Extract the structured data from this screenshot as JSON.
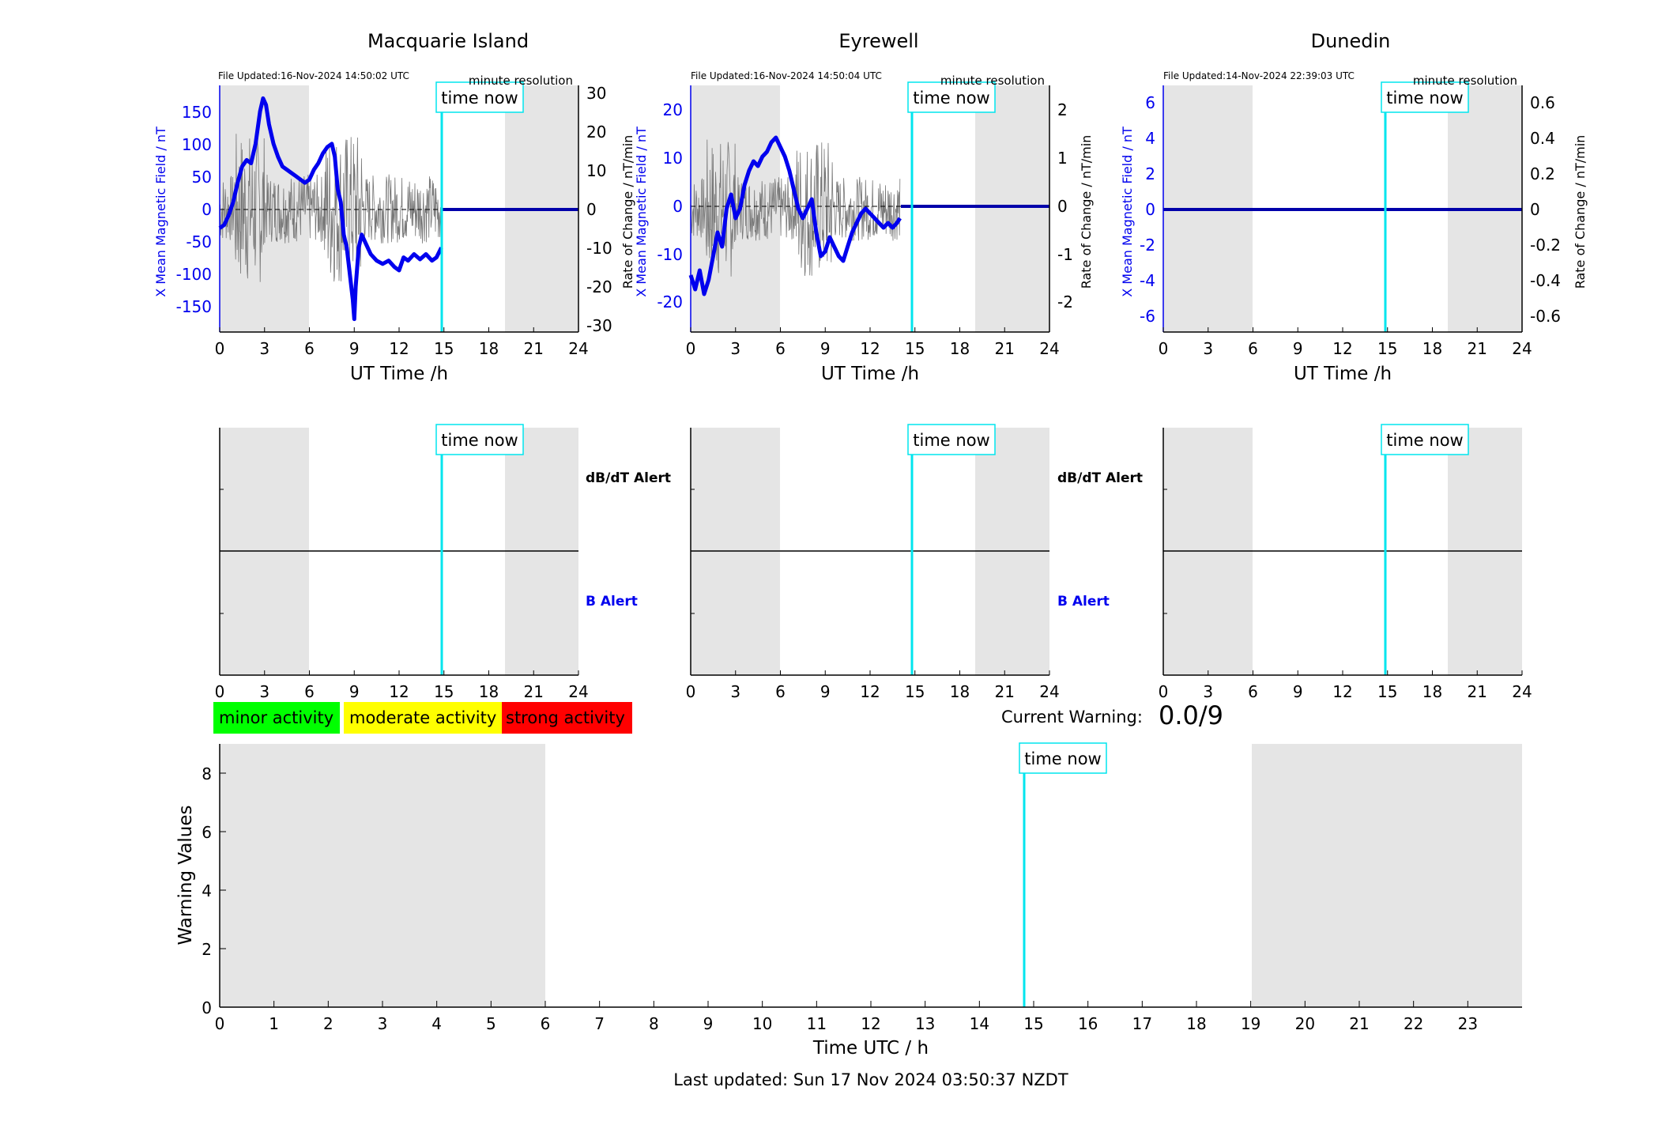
{
  "stations": [
    {
      "title": "Macquarie Island",
      "file_updated": "File Updated:16-Nov-2024 14:50:02 UTC",
      "resolution": "minute resolution",
      "ylabel_left": "X Mean Magnetic Field / nT",
      "ylabel_right": "Rate of Change / nT/min",
      "left_ticks": [
        "-150",
        "-100",
        "-50",
        "0",
        "50",
        "100",
        "150"
      ],
      "right_ticks": [
        "-30",
        "-20",
        "-10",
        "0",
        "10",
        "20",
        "30"
      ]
    },
    {
      "title": "Eyrewell",
      "file_updated": "File Updated:16-Nov-2024 14:50:04 UTC",
      "resolution": "minute resolution",
      "ylabel_left": "X Mean Magnetic Field / nT",
      "ylabel_right": "Rate of Change / nT/min",
      "left_ticks": [
        "-20",
        "-10",
        "0",
        "10",
        "20"
      ],
      "right_ticks": [
        "-2",
        "-1",
        "0",
        "1",
        "2"
      ]
    },
    {
      "title": "Dunedin",
      "file_updated": "File Updated:14-Nov-2024 22:39:03 UTC",
      "resolution": "minute resolution",
      "ylabel_left": "X Mean Magnetic Field / nT",
      "ylabel_right": "Rate of Change / nT/min",
      "left_ticks": [
        "-6",
        "-4",
        "-2",
        "0",
        "2",
        "4",
        "6"
      ],
      "right_ticks": [
        "-0.6",
        "-0.4",
        "-0.2",
        "0",
        "0.2",
        "0.4",
        "0.6"
      ]
    }
  ],
  "time_now_label": "time now",
  "xlabel_top": "UT Time /h",
  "x_ticks_24h": [
    "0",
    "3",
    "6",
    "9",
    "12",
    "15",
    "18",
    "21",
    "24"
  ],
  "alert_labels": {
    "dbdt": "dB/dT Alert",
    "b": "B Alert"
  },
  "legend": [
    {
      "label": "minor activity",
      "color": "#00ff00"
    },
    {
      "label": "moderate activity",
      "color": "#ffff00"
    },
    {
      "label": "strong activity",
      "color": "#ff0000"
    }
  ],
  "current_warning_label": "Current Warning:",
  "current_warning_value": "0.0/9",
  "warning_panel": {
    "ylabel": "Warning Values",
    "xlabel": "Time UTC / h",
    "y_ticks": [
      "0",
      "2",
      "4",
      "6",
      "8"
    ],
    "x_ticks": [
      "0",
      "1",
      "2",
      "3",
      "4",
      "5",
      "6",
      "7",
      "8",
      "9",
      "10",
      "11",
      "12",
      "13",
      "14",
      "15",
      "16",
      "17",
      "18",
      "19",
      "20",
      "21",
      "22",
      "23"
    ]
  },
  "last_updated": "Last updated: Sun 17 Nov 2024 03:50:37 NZDT",
  "chart_data": [
    {
      "type": "line",
      "title": "Macquarie Island",
      "xlabel": "UT Time /h",
      "ylabel": "X Mean Magnetic Field / nT",
      "xlim": [
        0,
        24
      ],
      "ylim": [
        -190,
        190
      ],
      "y2lim": [
        -32,
        32
      ],
      "time_now": 14.83,
      "night_shading": [
        [
          0,
          6
        ],
        [
          19,
          24
        ]
      ],
      "series": [
        {
          "x": [
            0,
            0.3,
            0.6,
            0.9,
            1.2,
            1.5,
            1.8,
            2.1,
            2.4,
            2.7,
            2.9,
            3.1,
            3.3,
            3.6,
            3.9,
            4.2,
            4.5,
            4.8,
            5.1,
            5.4,
            5.7,
            6.0,
            6.3,
            6.6,
            6.9,
            7.2,
            7.5,
            7.7,
            7.9,
            8.1,
            8.3,
            8.5,
            8.7,
            8.9,
            9.0,
            9.1,
            9.3,
            9.5,
            9.8,
            10.1,
            10.5,
            10.9,
            11.3,
            11.7,
            12.0,
            12.3,
            12.6,
            13.0,
            13.4,
            13.8,
            14.2,
            14.5,
            14.83
          ],
          "y": [
            -30,
            -25,
            -10,
            10,
            40,
            65,
            75,
            70,
            100,
            150,
            170,
            160,
            130,
            100,
            80,
            65,
            60,
            55,
            50,
            45,
            40,
            45,
            60,
            70,
            85,
            95,
            100,
            80,
            30,
            10,
            -40,
            -60,
            -100,
            -140,
            -170,
            -120,
            -60,
            -40,
            -55,
            -70,
            -80,
            -85,
            -80,
            -90,
            -95,
            -75,
            -80,
            -70,
            -78,
            -70,
            -80,
            -75,
            -60
          ]
        },
        {
          "name": "Rate of Change",
          "range": [
            -20,
            20
          ],
          "mean": 0
        }
      ]
    },
    {
      "type": "line",
      "title": "Eyrewell",
      "xlabel": "UT Time /h",
      "ylabel": "X Mean Magnetic Field / nT",
      "xlim": [
        0,
        24
      ],
      "ylim": [
        -26,
        26
      ],
      "y2lim": [
        -2.6,
        2.6
      ],
      "time_now": 14.83,
      "night_shading": [
        [
          0,
          6
        ],
        [
          19,
          24
        ]
      ],
      "series": [
        {
          "x": [
            0,
            0.3,
            0.6,
            0.9,
            1.2,
            1.5,
            1.8,
            2.1,
            2.4,
            2.7,
            3.0,
            3.3,
            3.6,
            3.9,
            4.2,
            4.5,
            4.8,
            5.1,
            5.4,
            5.7,
            6.0,
            6.3,
            6.6,
            6.9,
            7.2,
            7.5,
            7.8,
            8.1,
            8.4,
            8.7,
            9.0,
            9.3,
            9.6,
            9.9,
            10.2,
            10.5,
            10.8,
            11.1,
            11.4,
            11.7,
            12.0,
            12.3,
            12.6,
            12.9,
            13.2,
            13.5,
            13.8,
            14.0
          ],
          "y": [
            -14,
            -17,
            -13,
            -18,
            -15,
            -10,
            -5,
            -8,
            0,
            3,
            -2,
            0,
            5,
            8,
            10,
            9,
            11,
            12,
            14,
            15,
            13,
            11,
            8,
            4,
            0,
            -2,
            0,
            2,
            -5,
            -10,
            -9,
            -6,
            -8,
            -10,
            -11,
            -8,
            -5,
            -3,
            -1,
            0,
            -1,
            -2,
            -3,
            -4,
            -3,
            -4,
            -3,
            -2
          ]
        },
        {
          "name": "Rate of Change",
          "range": [
            -1.5,
            1.5
          ],
          "mean": 0
        }
      ]
    },
    {
      "type": "line",
      "title": "Dunedin",
      "xlabel": "UT Time /h",
      "ylabel": "X Mean Magnetic Field / nT",
      "xlim": [
        0,
        24
      ],
      "ylim": [
        -7,
        7
      ],
      "y2lim": [
        -0.7,
        0.7
      ],
      "time_now": 14.83,
      "night_shading": [
        [
          0,
          6
        ],
        [
          19,
          24
        ]
      ],
      "series": [
        {
          "x": [
            0,
            24
          ],
          "y": [
            0,
            0
          ]
        }
      ]
    },
    {
      "type": "bar",
      "title": "Warning Values",
      "xlabel": "Time UTC / h",
      "ylabel": "Warning Values",
      "xlim": [
        0,
        24
      ],
      "ylim": [
        0,
        9
      ],
      "time_now": 14.83,
      "night_shading": [
        [
          0,
          6
        ],
        [
          19,
          24
        ]
      ],
      "values": []
    }
  ]
}
